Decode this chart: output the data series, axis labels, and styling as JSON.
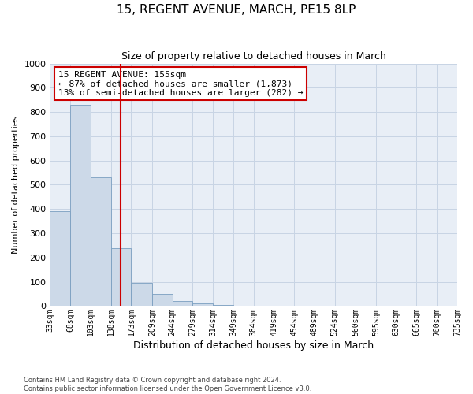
{
  "title": "15, REGENT AVENUE, MARCH, PE15 8LP",
  "subtitle": "Size of property relative to detached houses in March",
  "xlabel": "Distribution of detached houses by size in March",
  "ylabel": "Number of detached properties",
  "bin_edges": [
    33,
    68,
    103,
    138,
    173,
    209,
    244,
    279,
    314,
    349,
    384,
    419,
    454,
    489,
    524,
    560,
    595,
    630,
    665,
    700,
    735
  ],
  "bin_labels": [
    "33sqm",
    "68sqm",
    "103sqm",
    "138sqm",
    "173sqm",
    "209sqm",
    "244sqm",
    "279sqm",
    "314sqm",
    "349sqm",
    "384sqm",
    "419sqm",
    "454sqm",
    "489sqm",
    "524sqm",
    "560sqm",
    "595sqm",
    "630sqm",
    "665sqm",
    "700sqm",
    "735sqm"
  ],
  "counts": [
    390,
    830,
    530,
    240,
    95,
    50,
    20,
    10,
    5,
    0,
    0,
    0,
    0,
    0,
    0,
    0,
    0,
    0,
    0,
    0
  ],
  "bar_color": "#ccd9e8",
  "bar_edge_color": "#7aaan0",
  "property_value": 155,
  "property_line_color": "#cc0000",
  "annotation_line1": "15 REGENT AVENUE: 155sqm",
  "annotation_line2": "← 87% of detached houses are smaller (1,873)",
  "annotation_line3": "13% of semi-detached houses are larger (282) →",
  "annotation_box_color": "#cc0000",
  "ylim": [
    0,
    1000
  ],
  "yticks": [
    0,
    100,
    200,
    300,
    400,
    500,
    600,
    700,
    800,
    900,
    1000
  ],
  "grid_color": "#c8d4e4",
  "background_color": "#e8eef6",
  "footer_text": "Contains HM Land Registry data © Crown copyright and database right 2024.\nContains public sector information licensed under the Open Government Licence v3.0.",
  "title_fontsize": 11,
  "subtitle_fontsize": 9,
  "xlabel_fontsize": 9,
  "ylabel_fontsize": 8,
  "annotation_fontsize": 8,
  "tick_fontsize": 7
}
